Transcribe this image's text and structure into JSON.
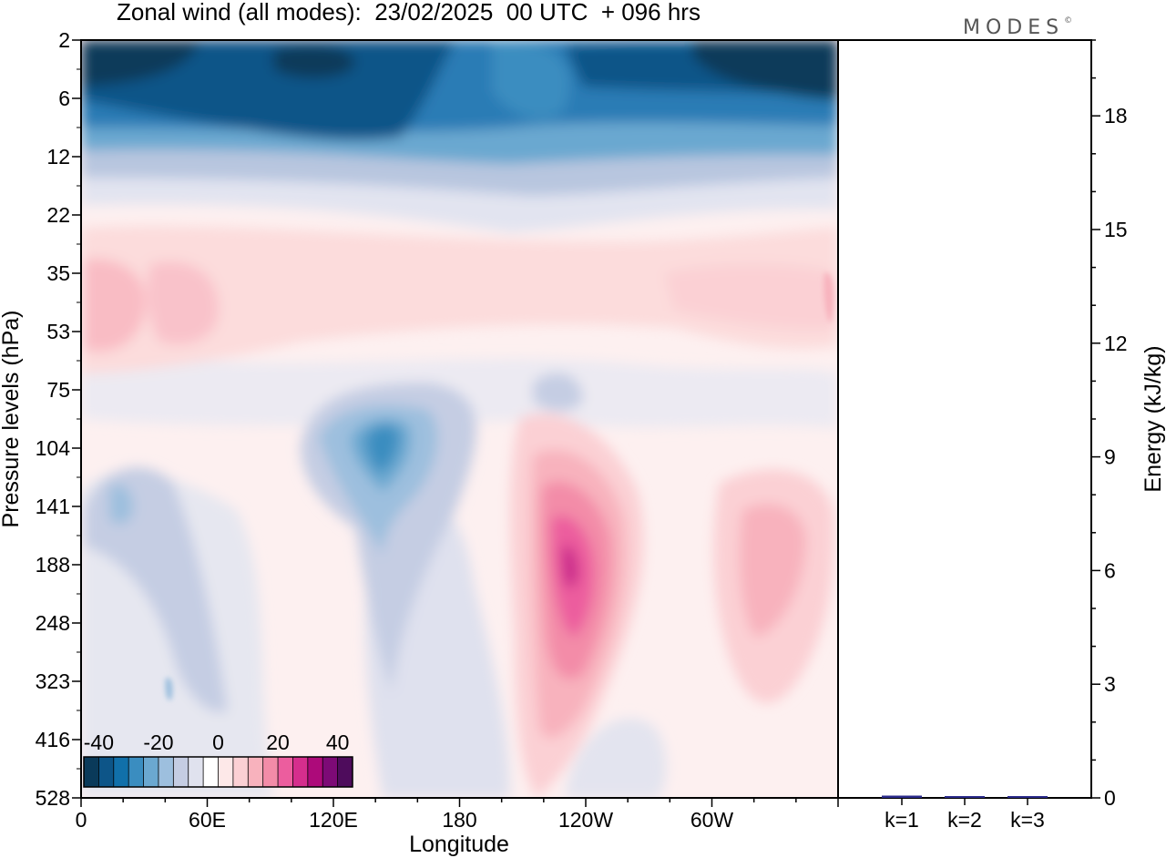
{
  "title": "Zonal wind (all modes):  23/02/2025  00 UTC  + 096 hrs",
  "logo": "MODES",
  "logo_mark": "©",
  "chart_data": [
    {
      "type": "heatmap",
      "title": "Zonal wind (all modes):  23/02/2025  00 UTC  + 096 hrs",
      "xlabel": "Longitude",
      "ylabel": "Pressure levels (hPa)",
      "x_ticks": [
        "0",
        "60E",
        "120E",
        "180",
        "120W",
        "60W"
      ],
      "x_range_deg": [
        0,
        360
      ],
      "y_ticks": [
        "2",
        "6",
        "12",
        "22",
        "35",
        "53",
        "75",
        "104",
        "141",
        "188",
        "248",
        "323",
        "416",
        "528"
      ],
      "y_scale": "model levels (top 2 hPa, bottom 528 hPa)",
      "colorbar": {
        "labels": [
          "-40",
          "-20",
          "0",
          "20",
          "40"
        ],
        "range": [
          -45,
          45
        ],
        "step": 5,
        "colors": [
          "#0a3a5a",
          "#0d5588",
          "#1170aa",
          "#3a8dc0",
          "#6ba8d0",
          "#9dbfde",
          "#c5cde3",
          "#e0e2ee",
          "#ffffff",
          "#fde8e8",
          "#fbd0d4",
          "#f8b2bd",
          "#f38ca8",
          "#ec5d9e",
          "#d52e8d",
          "#ad0a7a",
          "#7d0a76",
          "#4e0c5c"
        ]
      },
      "features": [
        {
          "name": "stratospheric easterlies",
          "lon": [
            0,
            360
          ],
          "level": [
            2,
            15
          ],
          "value": -35
        },
        {
          "name": "westerly maximum Pacific",
          "lon": 236,
          "level": 188,
          "value": 37
        },
        {
          "name": "westerly maximum Atlantic",
          "lon": 315,
          "level": 188,
          "value": 17
        },
        {
          "name": "easterly core West Pacific",
          "lon": 145,
          "level": 112,
          "value": -22
        },
        {
          "name": "easterly core Indian Ocean",
          "lon": 20,
          "level": 141,
          "value": -13
        },
        {
          "name": "lower stratosphere westerlies",
          "lon": [
            0,
            100
          ],
          "level": 45,
          "value": 12
        }
      ]
    },
    {
      "type": "bar",
      "categories": [
        "k=1",
        "k=2",
        "k=3"
      ],
      "values": [
        0.06,
        0.03,
        0.02
      ],
      "ylabel": "Energy (kJ/kg)",
      "y_ticks": [
        "0",
        "3",
        "6",
        "9",
        "12",
        "15",
        "18"
      ],
      "ylim": [
        0,
        20
      ],
      "bar_color": "#2a2a8a"
    }
  ]
}
